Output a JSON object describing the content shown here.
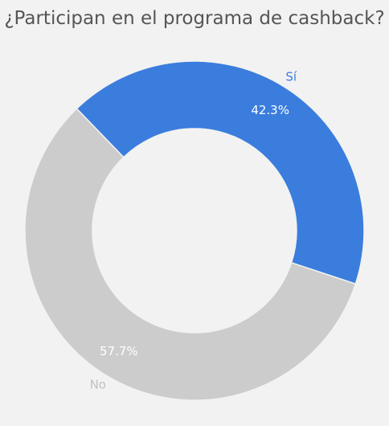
{
  "chart_data": {
    "type": "pie",
    "title": "¿Participan en el programa de cashback?",
    "subtitle": "",
    "donut": true,
    "legend": "none",
    "slices": [
      {
        "label": "Sí",
        "value": 42.3,
        "display": "42.3%",
        "color": "#3a7ddd",
        "label_color": "#3a7ddd"
      },
      {
        "label": "No",
        "value": 57.7,
        "display": "57.7%",
        "color": "#cccccc",
        "label_color": "#c2c2c2"
      }
    ],
    "percent_label_color": "#ffffff",
    "title_color": "#555555",
    "separator_color": "#f2f2f2"
  }
}
